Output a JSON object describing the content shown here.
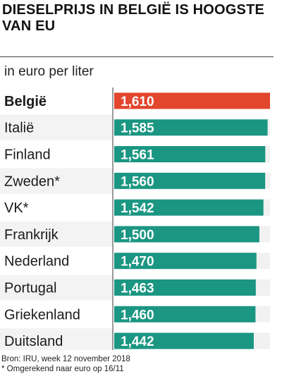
{
  "title": "DIESELPRIJS IN BELGIË IS HOOGSTE VAN EU",
  "subtitle": "in euro per liter",
  "source_lines": [
    "Bron: IRU, week 12 november 2018",
    "* Omgerekend naar euro op 16/11"
  ],
  "colors": {
    "highlight": "#e2462d",
    "bar": "#1b9682",
    "track": "#f1f1f1",
    "stripe": "#f3f3f3",
    "divider": "#3a3a3a"
  },
  "chart_data": {
    "type": "bar",
    "orientation": "horizontal",
    "title": "DIESELPRIJS IN BELGIË IS HOOGSTE VAN EU",
    "subtitle": "in euro per liter",
    "categories": [
      "België",
      "Italië",
      "Finland",
      "Zweden*",
      "VK*",
      "Frankrijk",
      "Nederland",
      "Portugal",
      "Griekenland",
      "Duitsland"
    ],
    "values": [
      1.61,
      1.585,
      1.561,
      1.56,
      1.542,
      1.5,
      1.47,
      1.463,
      1.46,
      1.442
    ],
    "value_labels": [
      "1,610",
      "1,585",
      "1,561",
      "1,560",
      "1,542",
      "1,500",
      "1,470",
      "1,463",
      "1,460",
      "1,442"
    ],
    "highlighted_category": "België",
    "unit": "euro per liter",
    "xlim": [
      0,
      1.61
    ],
    "grid": false,
    "legend": "none"
  }
}
